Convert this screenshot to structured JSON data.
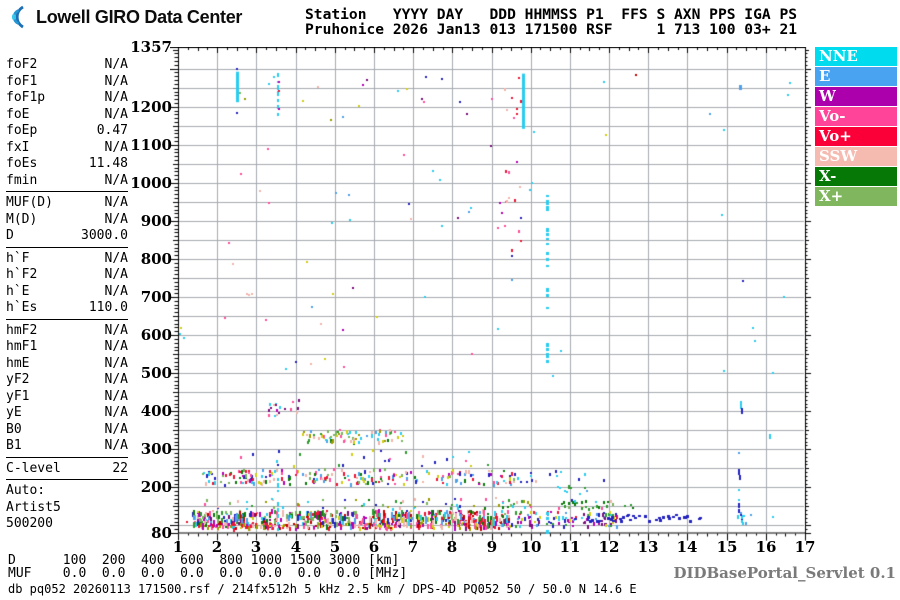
{
  "logo": {
    "text": "Lowell GIRO Data Center"
  },
  "header": {
    "line1": "Station   YYYY DAY   DDD HHMMSS P1  FFS S AXN PPS IGA PS",
    "line2": "Pruhonice 2026 Jan13 013 171500 RSF     1 713 100 03+ 21"
  },
  "panel": {
    "groups": [
      [
        {
          "label": "foF2",
          "value": "N/A"
        },
        {
          "label": "foF1",
          "value": "N/A"
        },
        {
          "label": "foF1p",
          "value": "N/A"
        },
        {
          "label": "foE",
          "value": "N/A"
        },
        {
          "label": "foEp",
          "value": "0.47"
        },
        {
          "label": "fxI",
          "value": "N/A"
        },
        {
          "label": "foEs",
          "value": "11.48"
        },
        {
          "label": "fmin",
          "value": "N/A"
        }
      ],
      [
        {
          "label": "MUF(D)",
          "value": "N/A"
        },
        {
          "label": "M(D)",
          "value": "N/A"
        },
        {
          "label": "D",
          "value": "3000.0"
        }
      ],
      [
        {
          "label": "h`F",
          "value": "N/A"
        },
        {
          "label": "h`F2",
          "value": "N/A"
        },
        {
          "label": "h`E",
          "value": "N/A"
        },
        {
          "label": "h`Es",
          "value": "110.0"
        }
      ],
      [
        {
          "label": "hmF2",
          "value": "N/A"
        },
        {
          "label": "hmF1",
          "value": "N/A"
        },
        {
          "label": "hmE",
          "value": "N/A"
        },
        {
          "label": "yF2",
          "value": "N/A"
        },
        {
          "label": "yF1",
          "value": "N/A"
        },
        {
          "label": "yE",
          "value": "N/A"
        },
        {
          "label": "B0",
          "value": "N/A"
        },
        {
          "label": "B1",
          "value": "N/A"
        }
      ],
      [
        {
          "label": "C-level",
          "value": "22"
        }
      ]
    ],
    "auto_lines": [
      "Auto:",
      "Artist5",
      "500200"
    ]
  },
  "legend": [
    {
      "label": "NNE",
      "color": "#00DCEE"
    },
    {
      "label": "E",
      "color": "#4AA3F0"
    },
    {
      "label": "W",
      "color": "#AB00AB"
    },
    {
      "label": "Vo-",
      "color": "#FF4499"
    },
    {
      "label": "Vo+",
      "color": "#FB0038"
    },
    {
      "label": "SSW",
      "color": "#F5BBB1"
    },
    {
      "label": "X-",
      "color": "#067806"
    },
    {
      "label": "X+",
      "color": "#7FB65E"
    }
  ],
  "footer": {
    "d_row": "D      100  200  400  600  800 1000 1500 3000 [km]",
    "muf_row": "MUF    0.0  0.0  0.0  0.0  0.0  0.0  0.0  0.0 [MHz]",
    "status": "db pq052 20260113 171500.rsf / 214fx512h 5 kHz 2.5 km / DPS-4D PQ052 50 / 50.0 N 14.6 E",
    "servlet": "DIDBasePortal_Servlet 0.1"
  },
  "chart_data": {
    "type": "scatter",
    "title": "Pruhonice ionogram 2026 Jan13 013 171500 RSF",
    "x_unit": "MHz",
    "y_unit": "km",
    "xlim": [
      1,
      17
    ],
    "ylim": [
      80,
      1357
    ],
    "x_ticks": [
      1,
      2,
      3,
      4,
      5,
      6,
      7,
      8,
      9,
      10,
      11,
      12,
      13,
      14,
      15,
      16,
      17
    ],
    "y_ticks": [
      1357,
      1200,
      1100,
      1000,
      900,
      800,
      700,
      600,
      500,
      400,
      300,
      200,
      80
    ],
    "grid": {
      "x_step": 1,
      "y_step": 50,
      "color": "#a6aab0"
    },
    "palette": {
      "cyan": "#2ACDEE",
      "blue": "#4FA0EA",
      "dblue": "#2323C0",
      "magenta": "#B400B4",
      "purple": "#7A0E7A",
      "pink": "#FF4D9B",
      "red": "#EE1535",
      "dred": "#C40000",
      "salmon": "#F2B5AB",
      "green": "#2E9A2E",
      "dgreen": "#0A7A0A",
      "lgreen": "#7CB45C",
      "yellow": "#D1CE12",
      "olive": "#9A9A00"
    },
    "features": [
      {
        "name": "es-band-mixed",
        "x": [
          1.35,
          9.45
        ],
        "km": [
          104,
          142
        ],
        "count": 520,
        "h": [
          2,
          7
        ],
        "colors": [
          "dblue",
          "blue",
          "cyan",
          "magenta",
          "purple",
          "red",
          "pink",
          "salmon",
          "yellow",
          "green",
          "dgreen",
          "lgreen",
          "dred"
        ]
      },
      {
        "name": "es-band-bottom",
        "x": [
          1.3,
          9.45
        ],
        "km": [
          94,
          108
        ],
        "count": 170,
        "h": [
          2,
          4
        ],
        "colors": [
          "red",
          "dred",
          "pink",
          "salmon",
          "olive",
          "yellow",
          "magenta"
        ]
      },
      {
        "name": "es-band-ext",
        "x": [
          9.45,
          12.2
        ],
        "km": [
          100,
          138
        ],
        "count": 100,
        "h": [
          2,
          4
        ],
        "colors": [
          "dblue",
          "blue",
          "magenta",
          "cyan",
          "green",
          "yellow",
          "red",
          "purple"
        ]
      },
      {
        "name": "es-navy-row",
        "x": [
          11.0,
          14.3
        ],
        "km": [
          112,
          130
        ],
        "count": 42,
        "h": [
          2,
          3
        ],
        "w": 3,
        "colors": [
          "dblue"
        ]
      },
      {
        "name": "es-upper-row",
        "x": [
          1.5,
          12.2
        ],
        "km": [
          146,
          174
        ],
        "count": 80,
        "h": [
          2,
          3
        ],
        "colors": [
          "dgreen",
          "green",
          "salmon",
          "cyan",
          "pink",
          "olive",
          "dblue",
          "lgreen"
        ]
      },
      {
        "name": "green-row",
        "x": [
          10.7,
          12.6
        ],
        "km": [
          148,
          166
        ],
        "count": 20,
        "h": [
          2,
          3
        ],
        "colors": [
          "dgreen",
          "green"
        ]
      },
      {
        "name": "band-230",
        "x": [
          1.55,
          9.6
        ],
        "km": [
          210,
          252
        ],
        "count": 210,
        "h": [
          2,
          4
        ],
        "colors": [
          "pink",
          "red",
          "salmon",
          "cyan",
          "blue",
          "dgreen",
          "yellow",
          "magenta",
          "lgreen",
          "dblue"
        ]
      },
      {
        "name": "band-230-ext",
        "x": [
          9.6,
          12.15
        ],
        "km": [
          212,
          245
        ],
        "count": 14,
        "h": [
          2,
          3
        ],
        "colors": [
          "dblue",
          "pink",
          "cyan",
          "salmon"
        ]
      },
      {
        "name": "scatter-270",
        "x": [
          2.4,
          9.4
        ],
        "km": [
          256,
          300
        ],
        "count": 26,
        "h": [
          2,
          3
        ],
        "colors": [
          "salmon",
          "pink",
          "cyan",
          "green",
          "dblue",
          "yellow"
        ]
      },
      {
        "name": "cluster-340",
        "x": [
          4.15,
          6.75
        ],
        "km": [
          320,
          354
        ],
        "count": 70,
        "h": [
          2,
          4
        ],
        "colors": [
          "dgreen",
          "green",
          "olive",
          "yellow",
          "cyan",
          "blue",
          "salmon",
          "pink",
          "lgreen"
        ]
      },
      {
        "name": "cluster-420",
        "x": [
          3.3,
          4.05
        ],
        "km": [
          388,
          442
        ],
        "count": 18,
        "h": [
          2,
          3
        ],
        "colors": [
          "magenta",
          "purple",
          "pink",
          "salmon",
          "cyan"
        ]
      },
      {
        "name": "sparse-pink-left",
        "x": [
          2.05,
          3.75
        ],
        "km": [
          420,
          1160
        ],
        "count": 11,
        "h": [
          2,
          2
        ],
        "colors": [
          "pink",
          "salmon"
        ]
      },
      {
        "name": "sparse-upper",
        "x": [
          4.1,
          9.75
        ],
        "km": [
          500,
          1290
        ],
        "count": 36,
        "h": [
          2,
          2
        ],
        "colors": [
          "magenta",
          "purple",
          "pink",
          "salmon",
          "cyan",
          "dblue",
          "yellow",
          "blue"
        ]
      },
      {
        "name": "f-trace-pink",
        "x": [
          9.3,
          9.75
        ],
        "km": [
          790,
          1290
        ],
        "count": 16,
        "h": [
          2,
          3
        ],
        "colors": [
          "pink",
          "red",
          "salmon",
          "magenta"
        ]
      },
      {
        "name": "right-blue-cluster",
        "x": [
          15.25,
          15.5
        ],
        "km": [
          105,
          135
        ],
        "count": 10,
        "h": [
          2,
          4
        ],
        "colors": [
          "blue",
          "dblue",
          "cyan"
        ]
      },
      {
        "name": "band-200-ext",
        "x": [
          10.5,
          11.45
        ],
        "km": [
          186,
          206
        ],
        "count": 10,
        "h": [
          2,
          2
        ],
        "colors": [
          "blue",
          "cyan",
          "green",
          "dblue"
        ]
      }
    ],
    "streaks": [
      {
        "f": 2.5,
        "km": [
          1212,
          1292
        ],
        "color": "cyan",
        "style": "solid",
        "w": 3
      },
      {
        "f": 3.55,
        "km": [
          1182,
          1303
        ],
        "color": "cyan",
        "style": "dashed",
        "w": 2
      },
      {
        "f": 3.55,
        "km": [
          80,
          224
        ],
        "color": "cyan",
        "style": "dashed",
        "w": 2
      },
      {
        "f": 9.8,
        "km": [
          1142,
          1287
        ],
        "color": "cyan",
        "style": "solid",
        "w": 3
      },
      {
        "f": 10.42,
        "km": [
          512,
          968
        ],
        "color": "cyan",
        "style": "dashed",
        "w": 3
      },
      {
        "f": 10.42,
        "km": [
          80,
          136
        ],
        "color": "cyan",
        "style": "dashed",
        "w": 3
      },
      {
        "f": 15.33,
        "km": [
          1212,
          1258
        ],
        "color": "blue",
        "style": "dashed",
        "w": 3
      }
    ],
    "singles": [
      [
        2.47,
        1302,
        "dblue"
      ],
      [
        2.47,
        1186,
        "dblue"
      ],
      [
        2.68,
        1224,
        "olive"
      ],
      [
        2.56,
        1240,
        "lgreen"
      ],
      [
        3.42,
        1282,
        "cyan"
      ],
      [
        3.3,
        1262,
        "cyan"
      ],
      [
        3.55,
        1268,
        "magenta"
      ],
      [
        3.55,
        1244,
        "red"
      ],
      [
        3.56,
        1196,
        "magenta"
      ],
      [
        9.36,
        1194,
        "salmon"
      ],
      [
        9.62,
        1198,
        "red"
      ],
      [
        9.68,
        1278,
        "red"
      ],
      [
        9.55,
        1172,
        "pink"
      ],
      [
        10.05,
        1137,
        "cyan"
      ],
      [
        10.0,
        1002,
        "cyan"
      ],
      [
        9.95,
        984,
        "cyan"
      ],
      [
        11.84,
        1268,
        "cyan"
      ],
      [
        11.9,
        1128,
        "yellow"
      ],
      [
        12.65,
        1286,
        "dred"
      ],
      [
        4.88,
        1168,
        "olive"
      ],
      [
        5.18,
        1175,
        "blue"
      ],
      [
        6.6,
        1243,
        "cyan"
      ],
      [
        4.16,
        1217,
        "yellow"
      ],
      [
        4.55,
        1255,
        "salmon"
      ],
      [
        5.8,
        1274,
        "purple"
      ],
      [
        5.7,
        1261,
        "magenta"
      ],
      [
        7.71,
        1276,
        "dblue"
      ],
      [
        7.2,
        1222,
        "purple"
      ],
      [
        1.06,
        620,
        "yellow"
      ],
      [
        1.03,
        606,
        "cyan"
      ],
      [
        1.12,
        596,
        "cyan"
      ],
      [
        3.72,
        514,
        "cyan"
      ],
      [
        3.98,
        532,
        "dblue"
      ],
      [
        4.4,
        676,
        "blue"
      ],
      [
        14.9,
        1142,
        "cyan"
      ],
      [
        16.6,
        1266,
        "cyan"
      ],
      [
        16.55,
        1234,
        "cyan"
      ],
      [
        14.55,
        1184,
        "blue"
      ],
      [
        14.85,
        918,
        "cyan"
      ],
      [
        15.4,
        746,
        "dblue"
      ],
      [
        16.45,
        704,
        "cyan"
      ],
      [
        15.65,
        622,
        "cyan"
      ],
      [
        15.7,
        588,
        "cyan"
      ],
      [
        14.9,
        508,
        "cyan"
      ],
      [
        16.15,
        504,
        "cyan"
      ],
      [
        15.33,
        428,
        "cyan",
        2,
        8
      ],
      [
        15.36,
        408,
        "dblue",
        2,
        6
      ],
      [
        16.08,
        340,
        "cyan",
        2,
        5
      ],
      [
        15.29,
        293,
        "blue"
      ],
      [
        15.3,
        248,
        "dblue",
        2,
        6
      ],
      [
        15.31,
        232,
        "dblue",
        2,
        5
      ],
      [
        15.3,
        196,
        "cyan"
      ],
      [
        15.29,
        170,
        "cyan"
      ],
      [
        15.3,
        158,
        "dblue",
        2,
        5
      ],
      [
        15.3,
        144,
        "dblue",
        2,
        4
      ],
      [
        15.6,
        129,
        "blue"
      ],
      [
        16.16,
        125,
        "cyan"
      ],
      [
        10.87,
        122,
        "cyan"
      ],
      [
        1.2,
        112,
        "red"
      ],
      [
        10.75,
        560,
        "cyan"
      ],
      [
        10.55,
        496,
        "cyan"
      ],
      [
        5.36,
        905,
        "cyan"
      ],
      [
        7.27,
        702,
        "cyan"
      ],
      [
        9.14,
        884,
        "pink"
      ]
    ]
  }
}
